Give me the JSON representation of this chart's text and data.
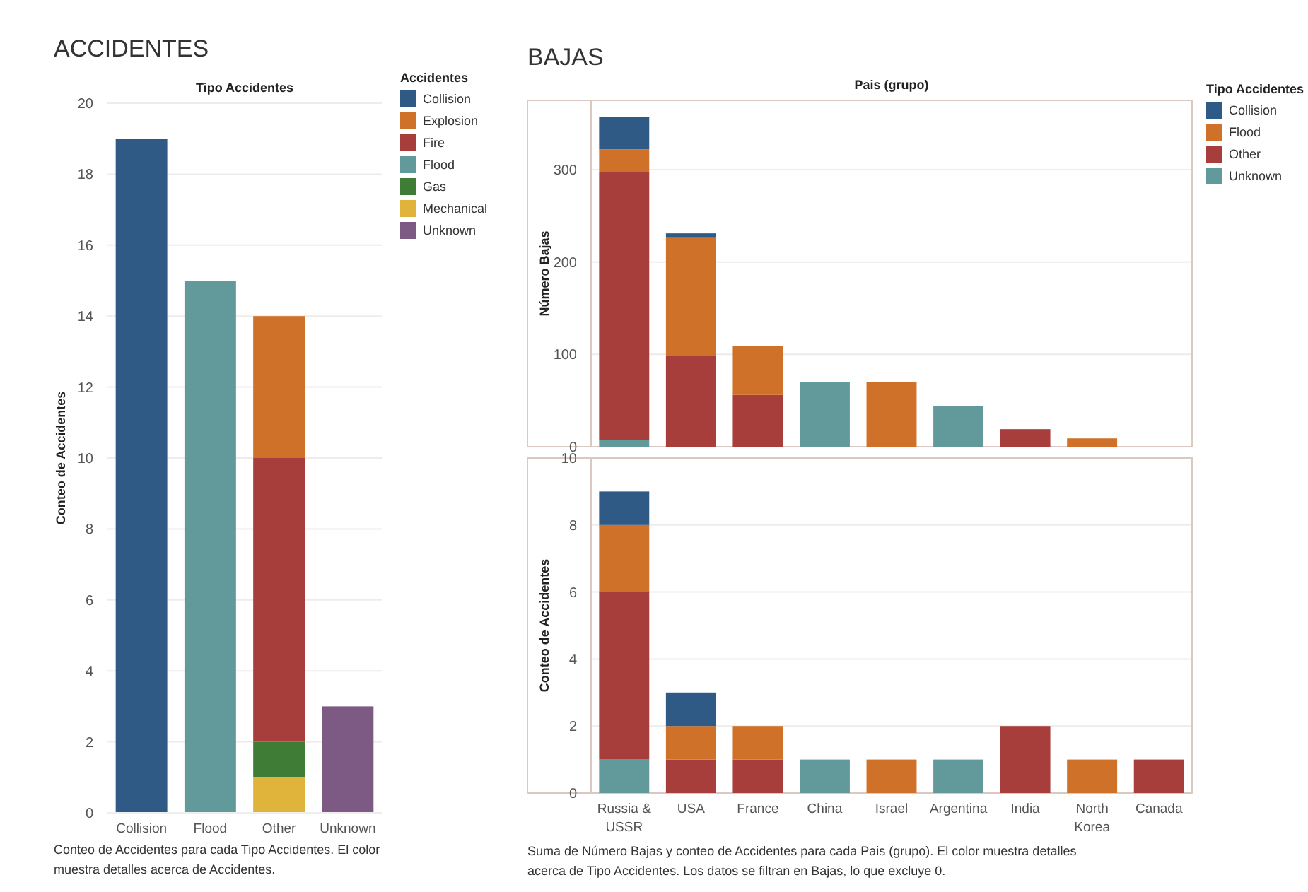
{
  "chart_data": [
    {
      "type": "bar",
      "title": "ACCIDENTES",
      "xlabel": "Tipo Accidentes",
      "ylabel": "Conteo de Accidentes",
      "legend_title": "Accidentes",
      "stacked": true,
      "categories": [
        "Collision",
        "Flood",
        "Other",
        "Unknown"
      ],
      "series": [
        {
          "name": "Unknown",
          "color": "#7d5a84",
          "values": [
            null,
            null,
            null,
            3
          ]
        },
        {
          "name": "Mechanical",
          "color": "#e0b33a",
          "values": [
            null,
            null,
            1,
            null
          ]
        },
        {
          "name": "Gas",
          "color": "#3f7d36",
          "values": [
            null,
            null,
            1,
            null
          ]
        },
        {
          "name": "Flood",
          "color": "#62999a",
          "values": [
            null,
            15,
            null,
            null
          ]
        },
        {
          "name": "Fire",
          "color": "#a83e3b",
          "values": [
            null,
            null,
            8,
            null
          ]
        },
        {
          "name": "Explosion",
          "color": "#cf7129",
          "values": [
            null,
            null,
            4,
            null
          ]
        },
        {
          "name": "Collision",
          "color": "#2f5a86",
          "values": [
            19,
            null,
            null,
            null
          ]
        }
      ],
      "ylim": [
        0,
        20
      ],
      "yticks": [
        0,
        2,
        4,
        6,
        8,
        10,
        12,
        14,
        16,
        18,
        20
      ],
      "grid": "y",
      "legend": "top right",
      "annotations": [
        "Conteo de Accidentes para cada Tipo Accidentes.  El color muestra detalles acerca de Accidentes."
      ]
    },
    {
      "type": "bar",
      "title": "BAJAS",
      "xlabel": "Pais (grupo)",
      "ylabel": "Número Bajas",
      "legend_title": "Tipo Accidentes",
      "stacked": true,
      "categories": [
        null,
        null,
        null,
        null,
        null,
        null,
        null,
        null,
        null
      ],
      "series": [
        {
          "name": "Unknown",
          "color": "#62999a",
          "values": [
            7,
            null,
            null,
            70,
            null,
            44,
            null,
            null,
            null
          ]
        },
        {
          "name": "Other",
          "color": "#a83e3b",
          "values": [
            290,
            98,
            56,
            null,
            null,
            null,
            19,
            null,
            null
          ]
        },
        {
          "name": "Flood",
          "color": "#cf7129",
          "values": [
            25,
            128,
            53,
            null,
            70,
            null,
            null,
            9,
            null
          ]
        },
        {
          "name": "Collision",
          "color": "#2f5a86",
          "values": [
            35,
            5,
            null,
            null,
            null,
            null,
            null,
            null,
            null
          ]
        }
      ],
      "ylim": [
        0,
        375
      ],
      "yticks": [
        0,
        100,
        200,
        300
      ],
      "grid": "y",
      "legend": "top right",
      "tick_labels": "y"
    },
    {
      "type": "bar",
      "ylabel": "Conteo de Accidentes",
      "stacked": true,
      "categories": [
        "Russia & USSR",
        "USA",
        "France",
        "China",
        "Israel",
        "Argentina",
        "India",
        "North Korea",
        "Canada"
      ],
      "series": [
        {
          "color": "#62999a",
          "values": [
            1,
            null,
            null,
            1,
            null,
            1,
            null,
            null,
            null
          ]
        },
        {
          "color": "#a83e3b",
          "values": [
            5,
            1,
            1,
            null,
            null,
            null,
            2,
            null,
            1
          ]
        },
        {
          "color": "#cf7129",
          "values": [
            2,
            1,
            1,
            null,
            1,
            null,
            null,
            1,
            null
          ]
        },
        {
          "color": "#2f5a86",
          "values": [
            1,
            1,
            null,
            null,
            null,
            null,
            null,
            null,
            null
          ]
        }
      ],
      "ylim": [
        0,
        10
      ],
      "yticks": [
        0,
        2,
        4,
        6,
        8,
        10
      ],
      "grid": "y",
      "annotations": [
        "Suma de Número Bajas y conteo de Accidentes para cada Pais (grupo).  El color muestra detalles acerca de Tipo Accidentes. Los datos se filtran en Bajas, lo que excluye 0."
      ]
    }
  ]
}
